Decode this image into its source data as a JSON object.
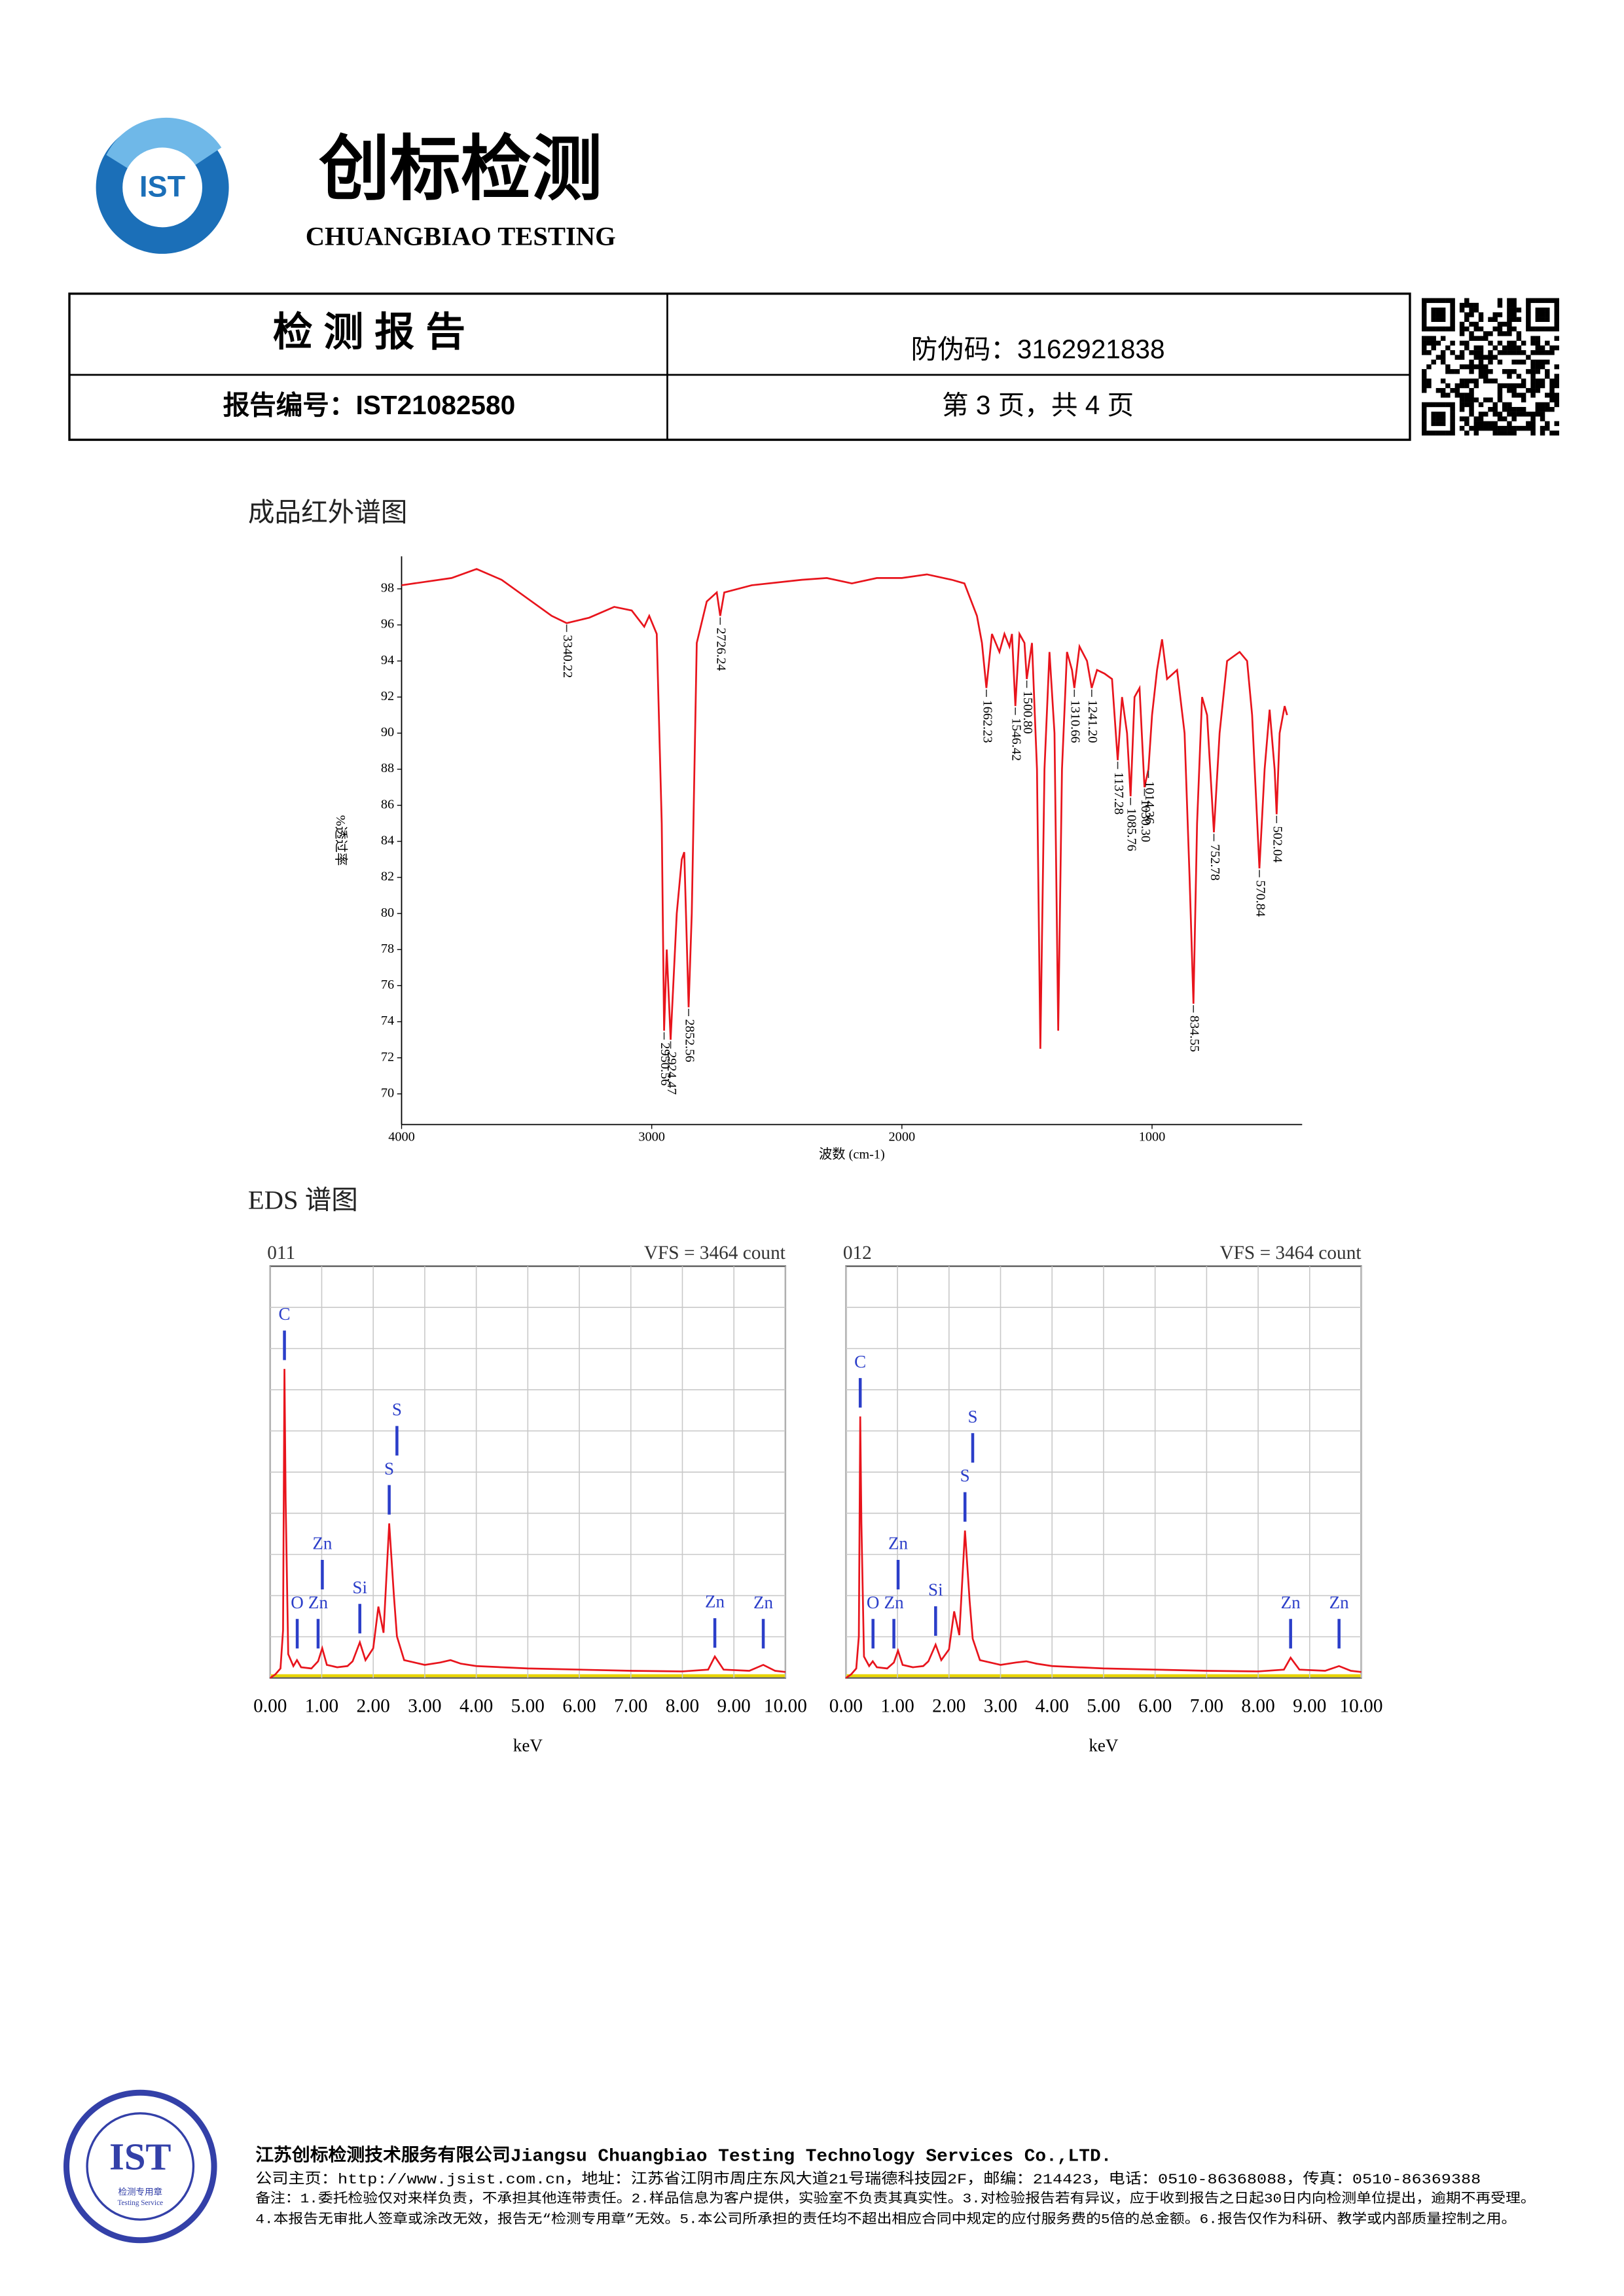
{
  "header": {
    "logo_text": "IST",
    "title": "创标检测",
    "subtitle": "CHUANGBIAO TESTING"
  },
  "report_box": {
    "heading": "检 测 报 告",
    "anti_fake": "防伪码：3162921838",
    "report_no": "报告编号：IST21082580",
    "page": "第 3 页，共 4 页"
  },
  "eds_heading": "EDS 谱图",
  "chart_data": [
    {
      "type": "line",
      "title": "成品红外谱图",
      "xlabel": "波数 (cm-1)",
      "ylabel": "%透过率",
      "xlim": [
        4000,
        400
      ],
      "ylim": [
        68.3,
        99.8
      ],
      "xticks": [
        4000,
        3000,
        2000,
        1000
      ],
      "yticks": [
        70,
        72,
        74,
        76,
        78,
        80,
        82,
        84,
        86,
        88,
        90,
        92,
        94,
        96,
        98
      ],
      "color": "#e8141c",
      "x": [
        4000,
        3800,
        3700,
        3600,
        3500,
        3400,
        3340,
        3250,
        3150,
        3080,
        3030,
        3010,
        2980,
        2960,
        2950.56,
        2940,
        2924.47,
        2900,
        2880,
        2870,
        2852.56,
        2840,
        2820,
        2780,
        2740,
        2726.24,
        2710,
        2600,
        2400,
        2300,
        2200,
        2100,
        2000,
        1900,
        1800,
        1750,
        1700,
        1680,
        1662.23,
        1640,
        1610,
        1590,
        1570,
        1560,
        1546.42,
        1530,
        1510,
        1500.8,
        1480,
        1460,
        1446.51,
        1430,
        1410,
        1390,
        1375.14,
        1360,
        1340,
        1320,
        1310.66,
        1290,
        1260,
        1241.2,
        1220,
        1190,
        1160,
        1137.28,
        1120,
        1100,
        1085.76,
        1070,
        1050,
        1030.3,
        1014.36,
        1000,
        980,
        960,
        940,
        900,
        870,
        850,
        834.55,
        820,
        800,
        780,
        752.78,
        730,
        700,
        650,
        620,
        600,
        570.84,
        550,
        530,
        510,
        502.04,
        490,
        470,
        460
      ],
      "values": [
        98.2,
        98.6,
        99.1,
        98.5,
        97.5,
        96.5,
        96.1,
        96.4,
        97,
        96.8,
        95.9,
        96.5,
        95.5,
        85,
        73.5,
        78,
        73,
        80,
        83,
        83.4,
        74.8,
        80,
        95,
        97.3,
        97.8,
        96.5,
        97.8,
        98.2,
        98.5,
        98.6,
        98.3,
        98.6,
        98.6,
        98.8,
        98.5,
        98.3,
        96.5,
        95,
        92.5,
        95.5,
        94.5,
        95.5,
        94.8,
        95.5,
        91.5,
        95.5,
        95,
        93,
        95,
        88,
        72.5,
        88,
        94.5,
        90,
        73.5,
        88,
        94.5,
        93.5,
        92.5,
        94.8,
        94,
        92.5,
        93.5,
        93.3,
        93,
        88.5,
        92,
        90,
        86.5,
        92,
        92.5,
        87,
        88,
        91,
        93.5,
        95.2,
        93,
        93.5,
        90,
        82,
        75,
        85,
        92,
        91,
        84.5,
        90,
        94,
        94.5,
        94,
        91,
        82.5,
        88,
        91.3,
        88,
        85.5,
        90,
        91.5,
        91
      ],
      "peaks": {
        "values": [
          3340.22,
          2950.56,
          2924.47,
          2852.56,
          2726.24,
          1662.23,
          1546.42,
          1500.8,
          1310.66,
          1241.2,
          1137.28,
          1085.76,
          1030.3,
          1014.36,
          834.55,
          752.78,
          570.84,
          502.04
        ],
        "value_labels": [
          "3340.22",
          "2950.56",
          "2924.47",
          "2852.56",
          "2726.24",
          "1662.23",
          "1546.42",
          "1500.80",
          "1310.66",
          "1241.20",
          "1137.28",
          "1085.76",
          "1030.30",
          "1014.36",
          "834.55",
          "752.78",
          "570.84",
          "502.04"
        ]
      }
    },
    {
      "type": "line",
      "title": "011",
      "annotation": "VFS = 3464 count",
      "xlabel": "keV",
      "xlim": [
        0,
        10
      ],
      "ylim": [
        0,
        3464
      ],
      "grid": true,
      "color": "#e8141c",
      "xticks": [
        {
          "value": 0,
          "label": "0.00"
        },
        {
          "value": 1,
          "label": "1.00"
        },
        {
          "value": 2,
          "label": "2.00"
        },
        {
          "value": 3,
          "label": "3.00"
        },
        {
          "value": 4,
          "label": "4.00"
        },
        {
          "value": 5,
          "label": "5.00"
        },
        {
          "value": 6,
          "label": "6.00"
        },
        {
          "value": 7,
          "label": "7.00"
        },
        {
          "value": 8,
          "label": "8.00"
        },
        {
          "value": 9,
          "label": "9.00"
        },
        {
          "value": 10,
          "label": "10.00"
        }
      ],
      "x": [
        0,
        0.1,
        0.2,
        0.25,
        0.277,
        0.3,
        0.35,
        0.45,
        0.52,
        0.6,
        0.8,
        0.93,
        1.01,
        1.1,
        1.3,
        1.5,
        1.6,
        1.74,
        1.85,
        2.0,
        2.1,
        2.2,
        2.31,
        2.4,
        2.46,
        2.6,
        2.8,
        3.0,
        3.3,
        3.5,
        3.7,
        4.0,
        5,
        6,
        7,
        8,
        8.5,
        8.63,
        8.8,
        9.3,
        9.57,
        9.8,
        10
      ],
      "values": [
        0,
        30,
        80,
        400,
        2600,
        1500,
        200,
        100,
        150,
        90,
        80,
        140,
        250,
        110,
        90,
        100,
        140,
        300,
        150,
        250,
        600,
        380,
        1300,
        700,
        350,
        150,
        130,
        110,
        130,
        150,
        120,
        100,
        80,
        70,
        60,
        55,
        70,
        180,
        70,
        60,
        110,
        60,
        50
      ],
      "elements": {
        "color": "#2b3ec9",
        "names": [
          "C",
          "O",
          "Zn",
          "Zn",
          "Si",
          "S",
          "S",
          "Zn",
          "Zn"
        ],
        "x": [
          0.277,
          0.525,
          0.93,
          1.012,
          1.74,
          2.31,
          2.46,
          8.63,
          9.57
        ]
      }
    },
    {
      "type": "line",
      "title": "012",
      "annotation": "VFS = 3464 count",
      "xlabel": "keV",
      "xlim": [
        0,
        10
      ],
      "ylim": [
        0,
        3464
      ],
      "grid": true,
      "color": "#e8141c",
      "xticks": [
        {
          "value": 0,
          "label": "0.00"
        },
        {
          "value": 1,
          "label": "1.00"
        },
        {
          "value": 2,
          "label": "2.00"
        },
        {
          "value": 3,
          "label": "3.00"
        },
        {
          "value": 4,
          "label": "4.00"
        },
        {
          "value": 5,
          "label": "5.00"
        },
        {
          "value": 6,
          "label": "6.00"
        },
        {
          "value": 7,
          "label": "7.00"
        },
        {
          "value": 8,
          "label": "8.00"
        },
        {
          "value": 9,
          "label": "9.00"
        },
        {
          "value": 10,
          "label": "10.00"
        }
      ],
      "x": [
        0,
        0.1,
        0.2,
        0.25,
        0.277,
        0.3,
        0.35,
        0.45,
        0.52,
        0.6,
        0.8,
        0.93,
        1.01,
        1.1,
        1.3,
        1.5,
        1.6,
        1.74,
        1.85,
        2.0,
        2.1,
        2.2,
        2.31,
        2.4,
        2.46,
        2.6,
        2.8,
        3.0,
        3.3,
        3.5,
        3.7,
        4.0,
        5,
        6,
        7,
        8,
        8.5,
        8.63,
        8.8,
        9.3,
        9.57,
        9.8,
        10
      ],
      "values": [
        0,
        30,
        80,
        350,
        2200,
        1300,
        180,
        100,
        140,
        90,
        80,
        130,
        230,
        110,
        90,
        100,
        140,
        280,
        150,
        240,
        560,
        360,
        1240,
        650,
        330,
        150,
        130,
        110,
        130,
        140,
        120,
        100,
        80,
        70,
        60,
        55,
        70,
        170,
        70,
        60,
        100,
        60,
        50
      ],
      "elements": {
        "color": "#2b3ec9",
        "names": [
          "C",
          "O",
          "Zn",
          "Zn",
          "Si",
          "S",
          "S",
          "Zn",
          "Zn"
        ],
        "x": [
          0.277,
          0.525,
          0.93,
          1.012,
          1.74,
          2.31,
          2.46,
          8.63,
          9.57
        ]
      }
    }
  ],
  "stamp": {
    "text": "IST",
    "caption": "检测专用章",
    "subcaption": "Testing Service"
  },
  "footer": {
    "company": "江苏创标检测技术服务有限公司Jiangsu Chuangbiao Testing Technology Services Co.,LTD.",
    "contact": "公司主页：http://www.jsist.com.cn，地址：江苏省江阴市周庄东风大道21号瑞德科技园2F，邮编：214423，电话：0510-86368088，传真：0510-86369388",
    "notes": [
      "备注：1.委托检验仅对来样负责，不承担其他连带责任。2.样品信息为客户提供，实验室不负责其真实性。3.对检验报告若有异议，应于收到报告之日起30日内向检测单位提出，逾期不再受理。",
      "4.本报告无审批人签章或涂改无效，报告无“检测专用章”无效。5.本公司所承担的责任均不超出相应合同中规定的应付服务费的5倍的总金额。6.报告仅作为科研、教学或内部质量控制之用。"
    ]
  }
}
